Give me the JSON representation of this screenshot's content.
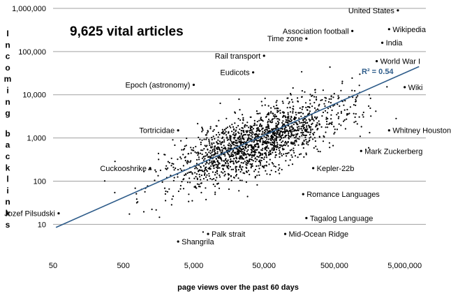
{
  "chart_data": {
    "type": "scatter",
    "title": "9,625 vital articles",
    "xlabel": "page views over the past 60 days",
    "ylabel": "Incoming backlinks",
    "x_scale": "log",
    "y_scale": "log",
    "xlim": [
      50,
      10000000
    ],
    "ylim": [
      5,
      1000000
    ],
    "x_ticks": [
      {
        "value": 50,
        "label": "50"
      },
      {
        "value": 500,
        "label": "500"
      },
      {
        "value": 5000,
        "label": "5,000"
      },
      {
        "value": 50000,
        "label": "50,000"
      },
      {
        "value": 500000,
        "label": "500,000"
      },
      {
        "value": 5000000,
        "label": "5,000,000"
      }
    ],
    "y_ticks": [
      {
        "value": 10,
        "label": "10"
      },
      {
        "value": 100,
        "label": "100"
      },
      {
        "value": 1000,
        "label": "1,000"
      },
      {
        "value": 10000,
        "label": "10,000"
      },
      {
        "value": 100000,
        "label": "100,000"
      },
      {
        "value": 1000000,
        "label": "1,000,000"
      }
    ],
    "grid": {
      "horizontal": true,
      "vertical": false
    },
    "trendline": {
      "x": [
        55,
        8000000
      ],
      "y": [
        8.5,
        45000
      ],
      "label": "R² = 0.54",
      "color": "#2e5c8a"
    },
    "point_color": "#000000",
    "cloud": {
      "count": 1800,
      "seed": 7,
      "center_log10_x": 4.6,
      "center_log10_y": 2.9,
      "sd_log10_x": 0.62,
      "sd_log10_y": 0.5,
      "correlation": 0.72,
      "x_range_log10": [
        1.75,
        6.9
      ],
      "y_range_log10": [
        0.25,
        5.7
      ]
    },
    "labeled_points": [
      {
        "label": "United States",
        "x": 4000000,
        "y": 900000
      },
      {
        "label": "Association football",
        "x": 900000,
        "y": 300000
      },
      {
        "label": "Wikipedia",
        "x": 3000000,
        "y": 330000
      },
      {
        "label": "Time zone",
        "x": 200000,
        "y": 200000
      },
      {
        "label": "India",
        "x": 2400000,
        "y": 160000
      },
      {
        "label": "Rail transport",
        "x": 50000,
        "y": 80000
      },
      {
        "label": "World War I",
        "x": 2000000,
        "y": 60000
      },
      {
        "label": "Eudicots",
        "x": 35000,
        "y": 33000
      },
      {
        "label": "Epoch (astronomy)",
        "x": 5000,
        "y": 17000
      },
      {
        "label": "Wiki",
        "x": 5000000,
        "y": 15000
      },
      {
        "label": "Tortricidae",
        "x": 3000,
        "y": 1500
      },
      {
        "label": "Whitney Houston",
        "x": 3000000,
        "y": 1500
      },
      {
        "label": "Mark Zuckerberg",
        "x": 1200000,
        "y": 500
      },
      {
        "label": "Cuckooshrike",
        "x": 1200,
        "y": 200
      },
      {
        "label": "Kepler-22b",
        "x": 250000,
        "y": 200
      },
      {
        "label": "Romance Languages",
        "x": 180000,
        "y": 50
      },
      {
        "label": "Jozef Pilsudski",
        "x": 60,
        "y": 18
      },
      {
        "label": "Tagalog Language",
        "x": 200000,
        "y": 14
      },
      {
        "label": "Palk strait",
        "x": 8000,
        "y": 6
      },
      {
        "label": "Mid-Ocean Ridge",
        "x": 100000,
        "y": 6
      },
      {
        "label": "Shangrila",
        "x": 3000,
        "y": 4
      }
    ]
  }
}
